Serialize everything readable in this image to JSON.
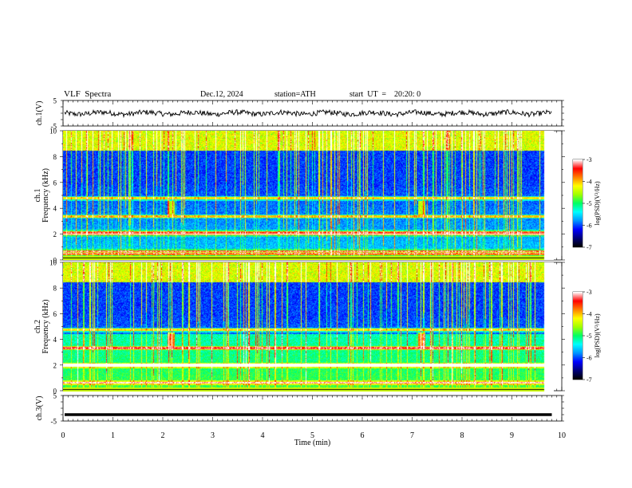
{
  "header": {
    "title": "VLF  Spectra",
    "date": "Dec.12, 2024",
    "station": "station=ATH",
    "start_ut": "start  UT  =    20:20: 0"
  },
  "chart_data": [
    {
      "type": "line",
      "panel": "ch1-waveform",
      "ylabel": "ch.1(V)",
      "ylim": [
        -5,
        5
      ],
      "yticks": [
        "5",
        "-5"
      ],
      "xlim": [
        0,
        10
      ],
      "description_level_V": 0,
      "noise_amplitude_V": 1.0
    },
    {
      "type": "heatmap",
      "panel": "ch1-spectrogram",
      "ylabel_line1": "ch.1",
      "ylabel_line2": "Frequency (kHz)",
      "ylim": [
        0,
        10
      ],
      "yticks": [
        "0",
        "2",
        "4",
        "6",
        "8",
        "10"
      ],
      "xlim": [
        0,
        10
      ],
      "colorbar": {
        "label": "log(PSD)(V²/Hz)",
        "range": [
          -7,
          -3
        ],
        "ticks": [
          "-3",
          "-4",
          "-5",
          "-6",
          "-7"
        ]
      },
      "bright_bands_khz": [
        2.0,
        2.2,
        0.7,
        0.5,
        3.4,
        4.8
      ],
      "bursts_min": [
        2.2,
        7.3
      ]
    },
    {
      "type": "heatmap",
      "panel": "ch2-spectrogram",
      "ylabel_line1": "ch.2",
      "ylabel_line2": "Frequency (kHz)",
      "ylim": [
        0,
        10
      ],
      "yticks": [
        "0",
        "2",
        "4",
        "6",
        "8",
        "10"
      ],
      "xlim": [
        0,
        10
      ],
      "colorbar": {
        "label": "log(PSD)(V²/Hz)",
        "range": [
          -7,
          -3
        ],
        "ticks": [
          "-3",
          "-4",
          "-5",
          "-6",
          "-7"
        ]
      },
      "bright_bands_khz": [
        2.0,
        2.1,
        3.4,
        4.8,
        0.7
      ],
      "bursts_min": [
        2.2,
        7.3
      ]
    },
    {
      "type": "line",
      "panel": "ch3-waveform",
      "ylabel": "ch.3(V)",
      "ylim": [
        -5,
        5
      ],
      "yticks": [
        "5",
        "-5"
      ],
      "xlim": [
        0,
        10
      ],
      "description_level_V": -2.5
    }
  ],
  "xaxis": {
    "label": "Time  (min)",
    "ticks": [
      "0",
      "1",
      "2",
      "3",
      "4",
      "5",
      "6",
      "7",
      "8",
      "9",
      "10"
    ],
    "data_end_min": 9.8
  },
  "colors": {
    "colormap": [
      "#000000",
      "#00007a",
      "#0000ff",
      "#0096ff",
      "#00ffff",
      "#00ff64",
      "#a0ff00",
      "#ffff00",
      "#ff8000",
      "#ff0000",
      "#ffffff"
    ]
  }
}
